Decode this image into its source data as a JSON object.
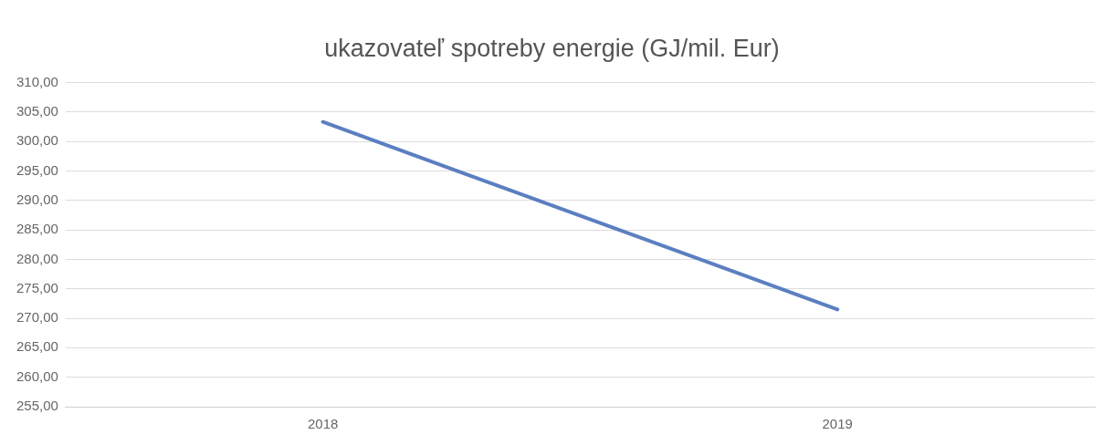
{
  "chart_data": {
    "type": "line",
    "title": "ukazovateľ spotreby energie (GJ/mil. Eur)",
    "categories": [
      "2018",
      "2019"
    ],
    "series": [
      {
        "color": "#5b7fc0",
        "values": [
          303.3,
          271.5
        ]
      }
    ],
    "ylim": [
      255,
      310
    ],
    "yticks": [
      {
        "value": 255,
        "label": "255,00"
      },
      {
        "value": 260,
        "label": "260,00"
      },
      {
        "value": 265,
        "label": "265,00"
      },
      {
        "value": 270,
        "label": "270,00"
      },
      {
        "value": 275,
        "label": "275,00"
      },
      {
        "value": 280,
        "label": "280,00"
      },
      {
        "value": 285,
        "label": "285,00"
      },
      {
        "value": 290,
        "label": "290,00"
      },
      {
        "value": 295,
        "label": "295,00"
      },
      {
        "value": 300,
        "label": "300,00"
      },
      {
        "value": 305,
        "label": "305,00"
      },
      {
        "value": 310,
        "label": "310,00"
      }
    ],
    "grid": "y",
    "legend": false,
    "marker": "none",
    "line_style": "solid"
  }
}
